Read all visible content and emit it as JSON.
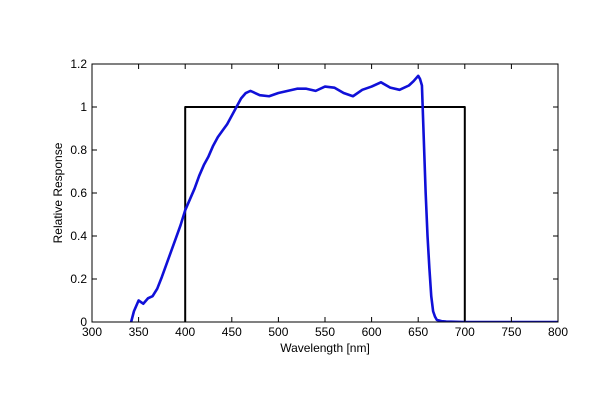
{
  "chart_data": {
    "type": "line",
    "xlabel": "Wavelength [nm]",
    "ylabel": "Relative Response",
    "xlim": [
      300,
      800
    ],
    "ylim": [
      0,
      1.2
    ],
    "x_ticks": [
      300,
      350,
      400,
      450,
      500,
      550,
      600,
      650,
      700,
      750,
      800
    ],
    "y_ticks": [
      0,
      0.2,
      0.4,
      0.6,
      0.8,
      1,
      1.2
    ],
    "x_tick_labels": [
      "300",
      "350",
      "400",
      "450",
      "500",
      "550",
      "600",
      "650",
      "700",
      "750",
      "800"
    ],
    "y_tick_labels": [
      "0",
      "0.2",
      "0.4",
      "0.6",
      "0.8",
      "1",
      "1.2"
    ],
    "grid": false,
    "legend": false,
    "series": [
      {
        "color": "#1010d8",
        "x": [
          342,
          345,
          350,
          355,
          360,
          365,
          370,
          375,
          380,
          385,
          390,
          395,
          400,
          405,
          410,
          415,
          420,
          425,
          430,
          435,
          440,
          445,
          450,
          455,
          460,
          465,
          470,
          480,
          490,
          500,
          510,
          520,
          530,
          540,
          550,
          560,
          570,
          580,
          590,
          600,
          610,
          620,
          630,
          640,
          645,
          650,
          652,
          654,
          656,
          658,
          660,
          662,
          664,
          666,
          668,
          670,
          675,
          680,
          700,
          750,
          800
        ],
        "y": [
          0,
          0.05,
          0.1,
          0.085,
          0.11,
          0.12,
          0.155,
          0.21,
          0.27,
          0.33,
          0.39,
          0.45,
          0.52,
          0.57,
          0.62,
          0.68,
          0.73,
          0.77,
          0.82,
          0.86,
          0.89,
          0.92,
          0.96,
          1.0,
          1.04,
          1.065,
          1.075,
          1.055,
          1.05,
          1.065,
          1.075,
          1.085,
          1.085,
          1.075,
          1.095,
          1.09,
          1.065,
          1.05,
          1.08,
          1.095,
          1.115,
          1.09,
          1.08,
          1.1,
          1.12,
          1.145,
          1.13,
          1.1,
          0.85,
          0.6,
          0.4,
          0.25,
          0.12,
          0.05,
          0.025,
          0.01,
          0.004,
          0.002,
          0.0,
          0.0,
          0.0
        ]
      },
      {
        "color": "#000000",
        "x": [
          400,
          400,
          700,
          700
        ],
        "y": [
          0,
          1,
          1,
          0
        ]
      }
    ]
  }
}
